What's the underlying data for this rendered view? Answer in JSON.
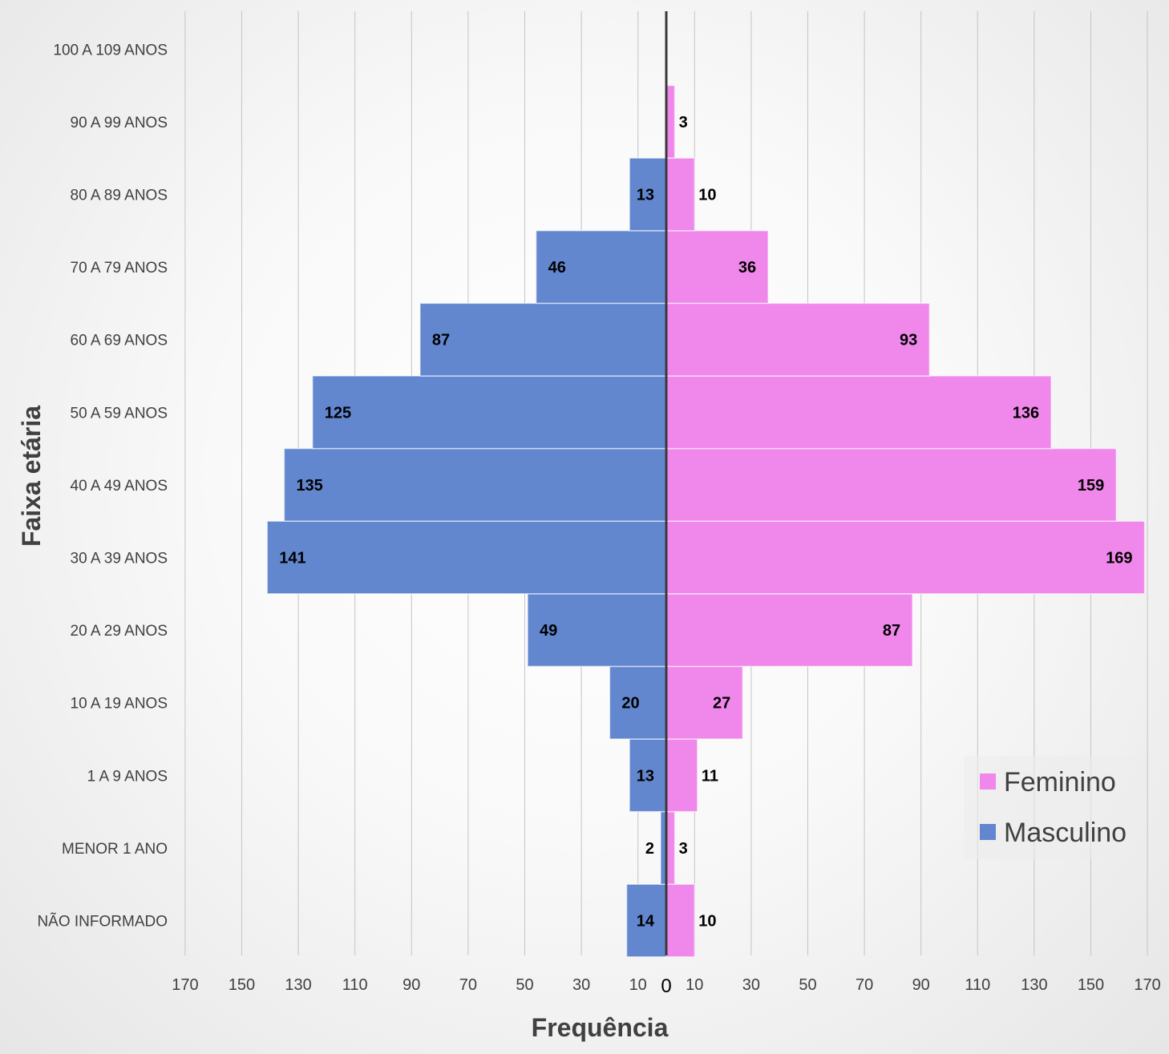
{
  "chart_data": {
    "type": "bar",
    "orientation": "horizontal",
    "title": "",
    "xlabel": "Frequência",
    "ylabel": "Faixa etária",
    "categories": [
      "NÃO INFORMADO",
      "MENOR 1 ANO",
      "1 A 9 ANOS",
      "10 A 19 ANOS",
      "20 A 29 ANOS",
      "30 A 39 ANOS",
      "40 A 49 ANOS",
      "50 A 59 ANOS",
      "60 A 69 ANOS",
      "70 A 79 ANOS",
      "80 A 89 ANOS",
      "90 A 99 ANOS",
      "100 A 109 ANOS"
    ],
    "series": [
      {
        "name": "Masculino",
        "color": "#6287cf",
        "side": "left",
        "values": [
          14,
          2,
          13,
          20,
          49,
          141,
          135,
          125,
          87,
          46,
          13,
          0,
          0
        ]
      },
      {
        "name": "Feminino",
        "color": "#ef88ea",
        "side": "right",
        "values": [
          10,
          3,
          11,
          27,
          87,
          169,
          159,
          136,
          93,
          36,
          10,
          3,
          0
        ]
      }
    ],
    "xlim": [
      -170,
      170
    ],
    "xticks": [
      -170,
      -150,
      -130,
      -110,
      -90,
      -70,
      -50,
      -30,
      -10,
      0,
      10,
      30,
      50,
      70,
      90,
      110,
      130,
      150,
      170
    ],
    "xtick_labels": [
      "170",
      "150",
      "130",
      "110",
      "90",
      "70",
      "50",
      "30",
      "10",
      "0",
      "10",
      "30",
      "50",
      "70",
      "90",
      "110",
      "130",
      "150",
      "170"
    ],
    "grid": true,
    "legend": {
      "position": "bottom-right",
      "entries": [
        "Feminino",
        "Masculino"
      ]
    }
  }
}
